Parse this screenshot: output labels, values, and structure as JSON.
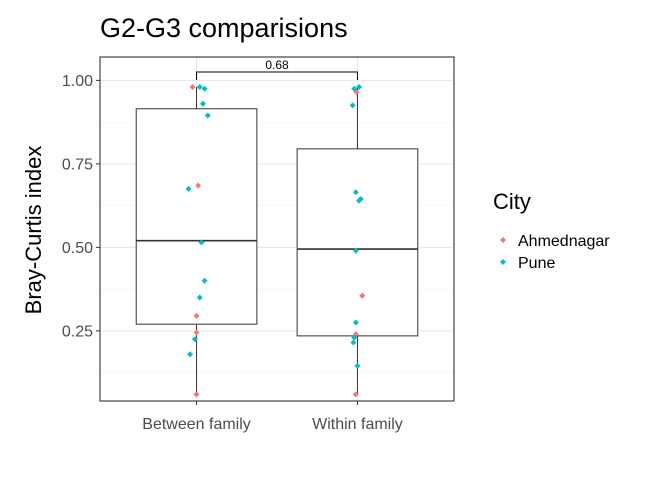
{
  "chart_data": {
    "type": "box",
    "title": "G2-G3 comparisions",
    "xlabel": "",
    "ylabel": "Bray-Curtis index",
    "categories": [
      "Between family",
      "Within family"
    ],
    "ylim": [
      0.04,
      1.07
    ],
    "yticks": [
      0.25,
      0.5,
      0.75,
      1.0
    ],
    "ytick_labels": [
      "0.25",
      "0.50",
      "0.75",
      "1.00"
    ],
    "grid": true,
    "legend": {
      "title": "City",
      "position": "right"
    },
    "boxes": [
      {
        "category": "Between family",
        "min": 0.06,
        "q1": 0.27,
        "median": 0.52,
        "q3": 0.915,
        "max": 0.98
      },
      {
        "category": "Within family",
        "min": 0.06,
        "q1": 0.235,
        "median": 0.495,
        "q3": 0.795,
        "max": 0.98
      }
    ],
    "series": [
      {
        "name": "Ahmednagar",
        "color": "#F8766D",
        "points": [
          {
            "category": "Between family",
            "y": 0.98,
            "jitter": -0.025
          },
          {
            "category": "Between family",
            "y": 0.685,
            "jitter": 0.01
          },
          {
            "category": "Between family",
            "y": 0.295,
            "jitter": 0.0
          },
          {
            "category": "Between family",
            "y": 0.245,
            "jitter": 0.0
          },
          {
            "category": "Between family",
            "y": 0.06,
            "jitter": 0.0
          },
          {
            "category": "Within family",
            "y": 0.965,
            "jitter": -0.005
          },
          {
            "category": "Within family",
            "y": 0.355,
            "jitter": 0.03
          },
          {
            "category": "Within family",
            "y": 0.24,
            "jitter": -0.01
          },
          {
            "category": "Within family",
            "y": 0.06,
            "jitter": -0.01
          }
        ]
      },
      {
        "name": "Pune",
        "color": "#00BFC4",
        "points": [
          {
            "category": "Between family",
            "y": 0.98,
            "jitter": 0.02
          },
          {
            "category": "Between family",
            "y": 0.975,
            "jitter": 0.05
          },
          {
            "category": "Between family",
            "y": 0.93,
            "jitter": 0.04
          },
          {
            "category": "Between family",
            "y": 0.895,
            "jitter": 0.07
          },
          {
            "category": "Between family",
            "y": 0.675,
            "jitter": -0.05
          },
          {
            "category": "Between family",
            "y": 0.515,
            "jitter": 0.03
          },
          {
            "category": "Between family",
            "y": 0.4,
            "jitter": 0.05
          },
          {
            "category": "Between family",
            "y": 0.35,
            "jitter": 0.02
          },
          {
            "category": "Between family",
            "y": 0.225,
            "jitter": -0.01
          },
          {
            "category": "Between family",
            "y": 0.18,
            "jitter": -0.04
          },
          {
            "category": "Within family",
            "y": 0.98,
            "jitter": 0.01
          },
          {
            "category": "Within family",
            "y": 0.975,
            "jitter": -0.02
          },
          {
            "category": "Within family",
            "y": 0.925,
            "jitter": -0.03
          },
          {
            "category": "Within family",
            "y": 0.665,
            "jitter": -0.01
          },
          {
            "category": "Within family",
            "y": 0.645,
            "jitter": 0.02
          },
          {
            "category": "Within family",
            "y": 0.64,
            "jitter": 0.01
          },
          {
            "category": "Within family",
            "y": 0.49,
            "jitter": -0.01
          },
          {
            "category": "Within family",
            "y": 0.275,
            "jitter": -0.01
          },
          {
            "category": "Within family",
            "y": 0.23,
            "jitter": -0.02
          },
          {
            "category": "Within family",
            "y": 0.215,
            "jitter": -0.025
          },
          {
            "category": "Within family",
            "y": 0.145,
            "jitter": 0.0
          }
        ]
      }
    ],
    "annotations": [
      {
        "type": "bracket",
        "from": "Between family",
        "to": "Within family",
        "label": "0.68",
        "y": 1.025
      }
    ]
  }
}
